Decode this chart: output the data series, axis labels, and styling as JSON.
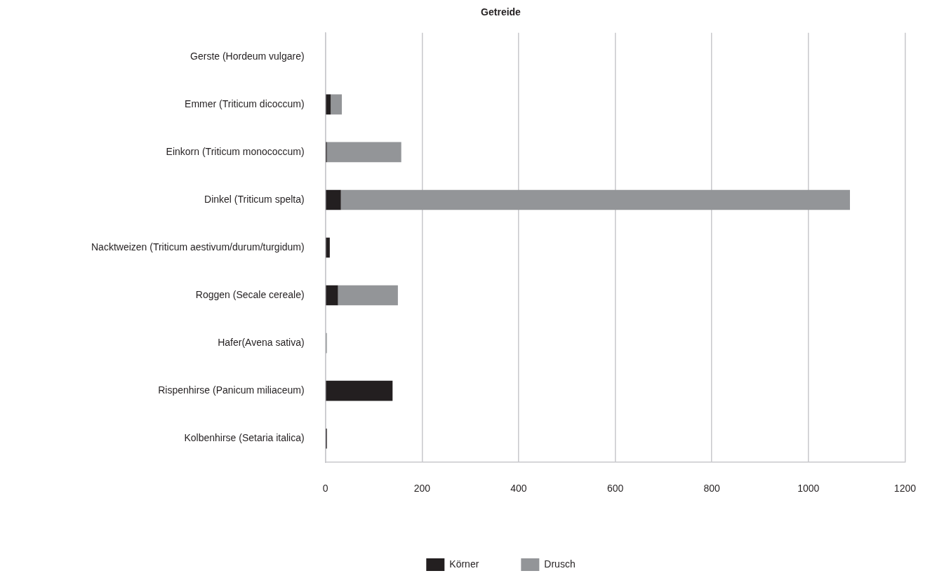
{
  "chart_data": {
    "type": "bar",
    "title": "Getreide",
    "orientation": "horizontal",
    "stacked": true,
    "categories": [
      "Gerste (Hordeum vulgare)",
      "Emmer (Triticum dicoccum)",
      "Einkorn (Triticum monococcum)",
      "Dinkel (Triticum spelta)",
      "Nacktweizen (Triticum aestivum/durum/turgidum)",
      "Roggen (Secale cereale)",
      "Hafer(Avena sativa)",
      "Rispenhirse (Panicum miliaceum)",
      "Kolbenhirse (Setaria italica)"
    ],
    "series": [
      {
        "name": "Körner",
        "color": "#231f20",
        "values": [
          0,
          11,
          3,
          32,
          9,
          26,
          0,
          139,
          3
        ]
      },
      {
        "name": "Drusch",
        "color": "#939598",
        "values": [
          0,
          23,
          154,
          1054,
          0,
          124,
          3,
          0,
          0
        ]
      }
    ],
    "xlim": [
      0,
      1200
    ],
    "xticks": [
      0,
      200,
      400,
      600,
      800,
      1000,
      1200
    ],
    "grid": "x",
    "legend": "bottom"
  }
}
